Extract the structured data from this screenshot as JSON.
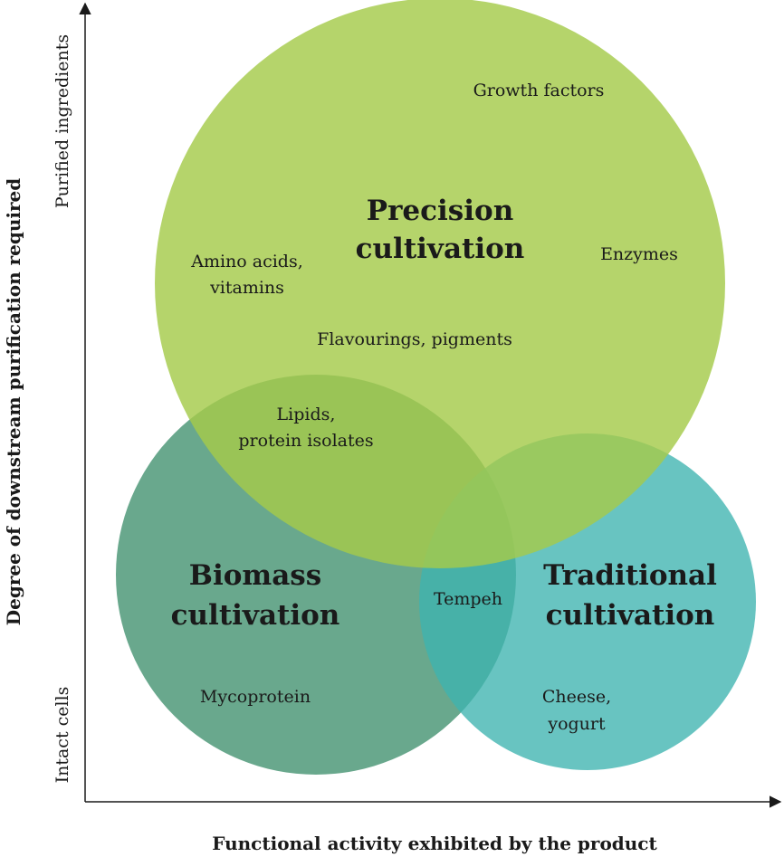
{
  "axes": {
    "y_label": "Degree of downstream purification required",
    "y_top": "Purified ingredients",
    "y_bottom": "Intact cells",
    "x_label": "Functional activity exhibited by the product"
  },
  "circles": {
    "precision": {
      "title_lines": [
        "Precision",
        "cultivation"
      ],
      "color": "#a5cb4b"
    },
    "biomass": {
      "title_lines": [
        "Biomass",
        "cultivation"
      ],
      "color": "#3f8f6d"
    },
    "traditional": {
      "title_lines": [
        "Traditional",
        "cultivation"
      ],
      "color": "#3db4b0"
    }
  },
  "items": {
    "growth_factors": "Growth factors",
    "enzymes": "Enzymes",
    "amino_acids": [
      "Amino acids,",
      "vitamins"
    ],
    "flavourings": "Flavourings, pigments",
    "lipids": [
      "Lipids,",
      "protein isolates"
    ],
    "tempeh": "Tempeh",
    "mycoprotein": "Mycoprotein",
    "cheese": [
      "Cheese,",
      "yogurt"
    ]
  },
  "colors": {
    "axis": "#1a1a1a",
    "text": "#1a1a1a"
  }
}
